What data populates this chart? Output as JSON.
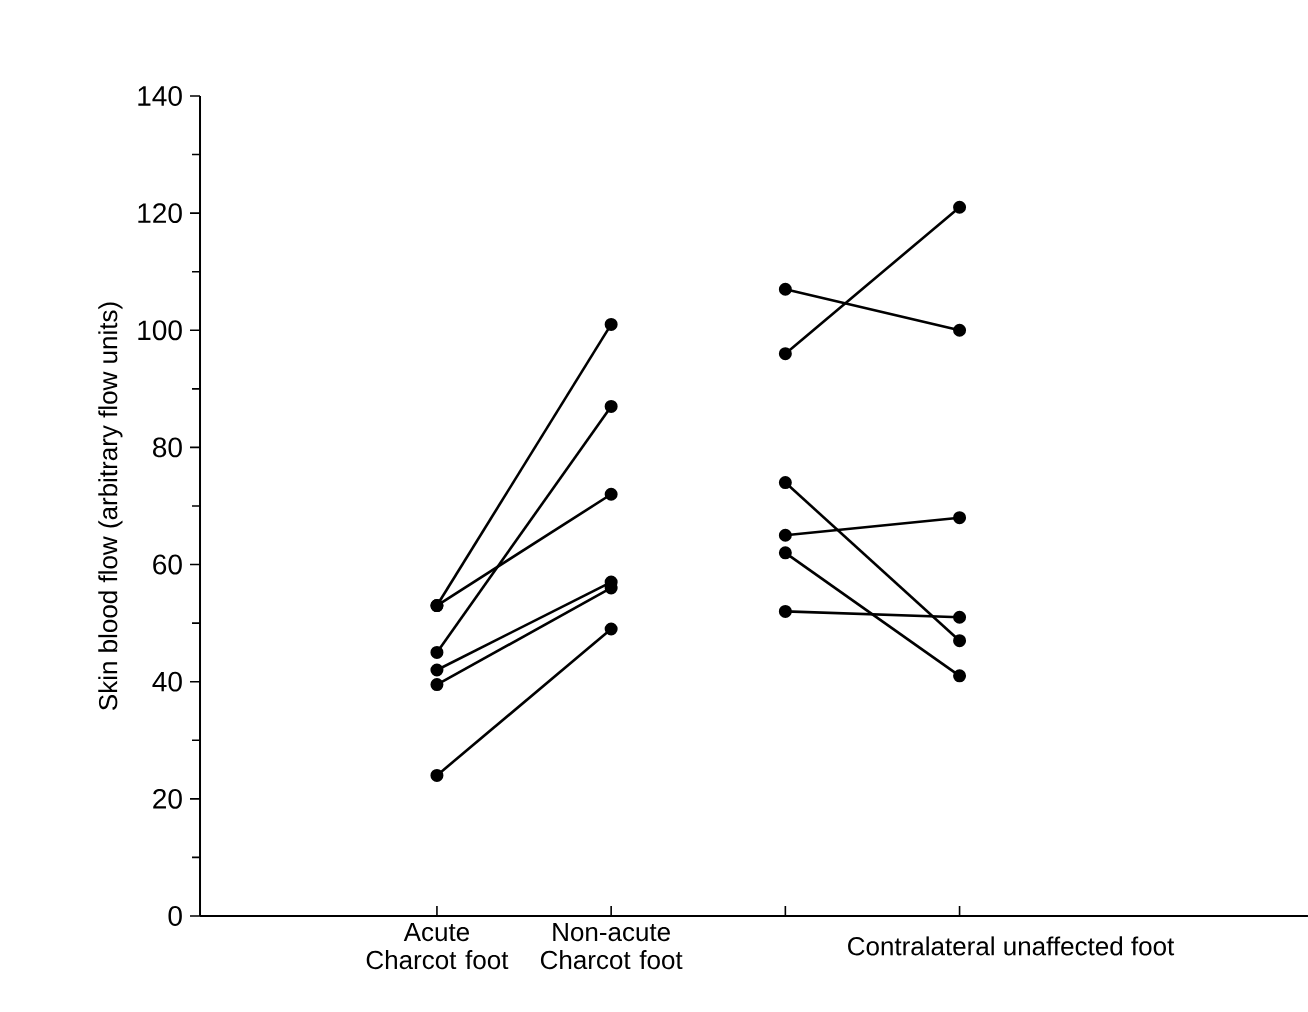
{
  "chart_data": {
    "type": "line",
    "ylabel": "Skin blood flow (arbitrary flow units)",
    "categories": [
      "Acute Charcot foot",
      "Non-acute Charcot foot",
      null,
      null
    ],
    "annotations": [
      "Contralateral unaffected foot"
    ],
    "ylim": [
      0,
      140
    ],
    "yticks": [
      0,
      20,
      40,
      60,
      80,
      100,
      120,
      140
    ],
    "marker": "circle",
    "line_style": "solid",
    "series": [
      {
        "color": "#000000",
        "values": [
          53,
          101,
          null,
          null
        ]
      },
      {
        "color": "#000000",
        "values": [
          53,
          72,
          null,
          null
        ]
      },
      {
        "color": "#000000",
        "values": [
          45,
          87,
          null,
          null
        ]
      },
      {
        "color": "#000000",
        "values": [
          42,
          57,
          null,
          null
        ]
      },
      {
        "color": "#000000",
        "values": [
          39.5,
          56,
          null,
          null
        ]
      },
      {
        "color": "#000000",
        "values": [
          24,
          49,
          null,
          null
        ]
      },
      {
        "color": "#000000",
        "values": [
          null,
          null,
          107,
          100
        ]
      },
      {
        "color": "#000000",
        "values": [
          null,
          null,
          96,
          121
        ]
      },
      {
        "color": "#000000",
        "values": [
          null,
          null,
          74,
          47
        ]
      },
      {
        "color": "#000000",
        "values": [
          null,
          null,
          65,
          68
        ]
      },
      {
        "color": "#000000",
        "values": [
          null,
          null,
          62,
          41
        ]
      },
      {
        "color": "#000000",
        "values": [
          null,
          null,
          52,
          51
        ]
      }
    ]
  }
}
